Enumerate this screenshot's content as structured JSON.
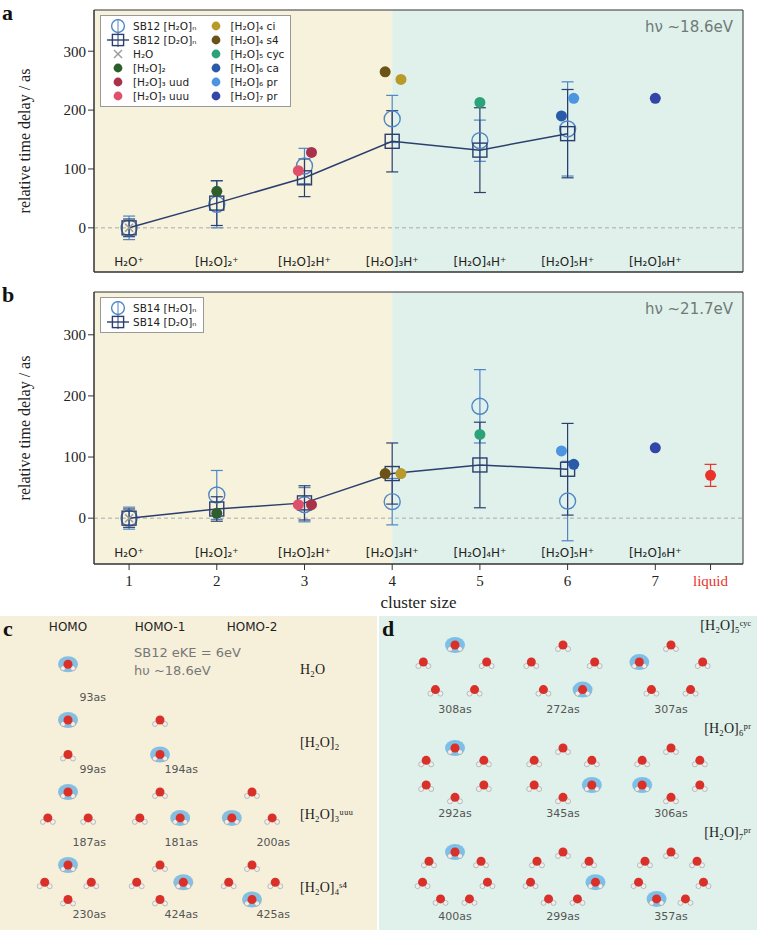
{
  "chart_data": [
    {
      "type": "scatter",
      "panel_label": "a",
      "y_label": "relative time delay / as",
      "energy_label": "hν ~18.6eV",
      "legend": "upper left",
      "tick_labels": "y",
      "xlim": [
        0.6,
        8
      ],
      "xticks": [
        1,
        2,
        3,
        4,
        5,
        6,
        7
      ],
      "ylim": [
        -75,
        370
      ],
      "yticks": [
        0,
        100,
        200,
        300
      ],
      "cluster_labels": [
        "H₂O⁺",
        "[H₂O]₂⁺",
        "[H₂O]₂H⁺",
        "[H₂O]₃H⁺",
        "[H₂O]₄H⁺",
        "[H₂O]₅H⁺",
        "[H₂O]₆H⁺"
      ],
      "shaded_regions": [
        {
          "x": [
            0.6,
            4
          ],
          "color": "#f7f2dc"
        },
        {
          "x": [
            4,
            8
          ],
          "color": "#dff1ea"
        }
      ],
      "series": [
        {
          "name": "SB12 [H₂O]ₙ",
          "color": "#4f86c6",
          "marker": "open_circle",
          "x": [
            1,
            2,
            3,
            4,
            5,
            6
          ],
          "values": [
            0,
            40,
            105,
            185,
            148,
            168
          ],
          "errors": [
            20,
            40,
            30,
            40,
            35,
            80
          ]
        },
        {
          "name": "SB12 [D₂O]ₙ",
          "color": "#2c3e6e",
          "marker": "open_square",
          "line_style": "solid",
          "x": [
            1,
            2,
            3,
            4,
            5,
            6
          ],
          "values": [
            0,
            42,
            85,
            147,
            132,
            160
          ],
          "errors": [
            15,
            38,
            32,
            52,
            72,
            75
          ]
        },
        {
          "name": "H₂O",
          "color": "#9a9a9a",
          "marker": "x",
          "x": [
            1
          ],
          "values": [
            0
          ]
        },
        {
          "name": "[H₂O]₂",
          "color": "#2e5e2e",
          "marker": "filled_circle",
          "x": [
            2
          ],
          "values": [
            62
          ]
        },
        {
          "name": "[H₂O]₃ uud",
          "color": "#a8324a",
          "marker": "filled_circle",
          "x": [
            3.08
          ],
          "values": [
            128
          ]
        },
        {
          "name": "[H₂O]₃ uuu",
          "color": "#e0506a",
          "marker": "filled_circle",
          "x": [
            2.93
          ],
          "values": [
            97
          ]
        },
        {
          "name": "[H₂O]₄ ci",
          "color": "#b89a2a",
          "marker": "filled_circle",
          "x": [
            4.1
          ],
          "values": [
            252
          ]
        },
        {
          "name": "[H₂O]₄ s4",
          "color": "#6b5318",
          "marker": "filled_circle",
          "x": [
            3.92
          ],
          "values": [
            265
          ]
        },
        {
          "name": "[H₂O]₅ cyc",
          "color": "#2aa37a",
          "marker": "filled_circle",
          "x": [
            5
          ],
          "values": [
            213
          ]
        },
        {
          "name": "[H₂O]₆ ca",
          "color": "#2a5aa8",
          "marker": "filled_circle",
          "x": [
            5.93
          ],
          "values": [
            190
          ]
        },
        {
          "name": "[H₂O]₆ pr",
          "color": "#4d95e0",
          "marker": "filled_circle",
          "x": [
            6.07
          ],
          "values": [
            220
          ]
        },
        {
          "name": "[H₂O]₇ pr",
          "color": "#3346a8",
          "marker": "filled_circle",
          "x": [
            7
          ],
          "values": [
            220
          ]
        }
      ]
    },
    {
      "type": "scatter",
      "panel_label": "b",
      "y_label": "relative time delay / as",
      "x_label": "cluster size",
      "energy_label": "hν ~21.7eV",
      "legend": "upper left",
      "xlim": [
        0.6,
        8
      ],
      "xticks": [
        1,
        2,
        3,
        4,
        5,
        6,
        7,
        {
          "value": 7.63,
          "label": "liquid"
        }
      ],
      "ylim": [
        -75,
        370
      ],
      "yticks": [
        0,
        100,
        200,
        300
      ],
      "cluster_labels": [
        "H₂O⁺",
        "[H₂O]₂⁺",
        "[H₂O]₂H⁺",
        "[H₂O]₃H⁺",
        "[H₂O]₄H⁺",
        "[H₂O]₅H⁺",
        "[H₂O]₆H⁺"
      ],
      "shaded_regions": [
        {
          "x": [
            0.6,
            4
          ],
          "color": "#f7f2dc"
        },
        {
          "x": [
            4,
            8
          ],
          "color": "#dff1ea"
        }
      ],
      "series": [
        {
          "name": "SB14 [H₂O]ₙ",
          "color": "#4f86c6",
          "marker": "open_circle",
          "x": [
            1,
            2,
            3,
            4,
            5,
            6
          ],
          "values": [
            0,
            38,
            22,
            27,
            183,
            28
          ],
          "errors": [
            18,
            40,
            28,
            38,
            60,
            65
          ]
        },
        {
          "name": "SB14 [D₂O]ₙ",
          "color": "#2c3e6e",
          "marker": "open_square",
          "line_style": "solid",
          "x": [
            1,
            2,
            3,
            4,
            5,
            6
          ],
          "values": [
            0,
            15,
            25,
            73,
            87,
            80
          ],
          "errors": [
            15,
            20,
            28,
            50,
            70,
            75
          ]
        },
        {
          "color": "#9a9a9a",
          "marker": "x",
          "x": [
            1
          ],
          "values": [
            0
          ]
        },
        {
          "color": "#2e5e2e",
          "marker": "filled_circle",
          "x": [
            2
          ],
          "values": [
            8
          ]
        },
        {
          "color": "#e0506a",
          "marker": "filled_circle",
          "x": [
            2.93
          ],
          "values": [
            22
          ]
        },
        {
          "color": "#a8324a",
          "marker": "filled_circle",
          "x": [
            3.08
          ],
          "values": [
            22
          ]
        },
        {
          "color": "#6b5318",
          "marker": "filled_circle",
          "x": [
            3.92
          ],
          "values": [
            73
          ]
        },
        {
          "color": "#b89a2a",
          "marker": "filled_circle",
          "x": [
            4.1
          ],
          "values": [
            73
          ]
        },
        {
          "color": "#2aa37a",
          "marker": "filled_circle",
          "x": [
            5
          ],
          "values": [
            137
          ]
        },
        {
          "color": "#4d95e0",
          "marker": "filled_circle",
          "x": [
            5.93
          ],
          "values": [
            110
          ]
        },
        {
          "color": "#2a5aa8",
          "marker": "filled_circle",
          "x": [
            6.07
          ],
          "values": [
            88
          ]
        },
        {
          "color": "#3346a8",
          "marker": "filled_circle",
          "x": [
            7
          ],
          "values": [
            115
          ]
        },
        {
          "color": "#e8342a",
          "marker": "filled_circle",
          "x": [
            7.63
          ],
          "values": [
            70
          ],
          "errors": [
            18
          ]
        }
      ]
    }
  ],
  "orbital_panels": [
    {
      "label": "c",
      "columns": [
        "HOMO",
        "HOMO-1",
        "HOMO-2"
      ],
      "annotations": [
        "SB12 eKE = 6eV",
        "hυ ~18.6eV"
      ],
      "rows": [
        {
          "name": "H₂O",
          "delays": [
            "93as"
          ]
        },
        {
          "name": "[H₂O]₂",
          "delays": [
            "99as",
            "194as"
          ]
        },
        {
          "name": "[H₂O]₃ᵘᵘᵘ",
          "delays": [
            "187as",
            "181as",
            "200as"
          ]
        },
        {
          "name": "[H₂O]₄ˢ⁴",
          "delays": [
            "230as",
            "424as",
            "425as"
          ]
        }
      ]
    },
    {
      "label": "d",
      "rows": [
        {
          "name": "[H₂O]₅ᶜʸᶜ",
          "delays": [
            "308as",
            "272as",
            "307as"
          ]
        },
        {
          "name": "[H₂O]₆ᵖʳ",
          "delays": [
            "292as",
            "345as",
            "306as"
          ]
        },
        {
          "name": "[H₂O]₇ᵖʳ",
          "delays": [
            "400as",
            "299as",
            "357as"
          ]
        }
      ]
    }
  ]
}
